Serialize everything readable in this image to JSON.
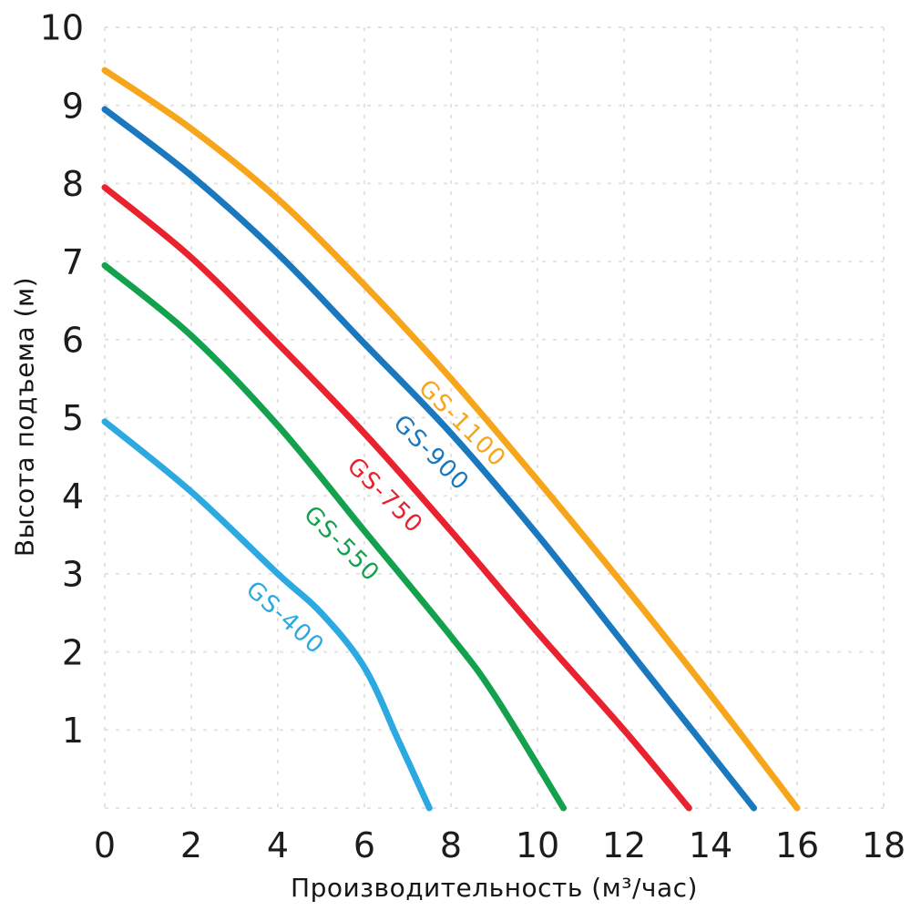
{
  "chart_data": {
    "type": "line",
    "title": "",
    "xlabel": "Производительность (м³/час)",
    "ylabel": "Высота подъема (м)",
    "xlim": [
      0,
      18
    ],
    "ylim": [
      0,
      10
    ],
    "x_ticks": [
      0,
      2,
      4,
      6,
      8,
      10,
      12,
      14,
      16,
      18
    ],
    "y_ticks": [
      1,
      2,
      3,
      4,
      5,
      6,
      7,
      8,
      9,
      10
    ],
    "grid": true,
    "grid_style": "dashed",
    "grid_color": "#E3E3E3",
    "axis_text_color": "#1c1c1c",
    "legend_position": "labels-along-curves",
    "series": [
      {
        "name": "GS-400",
        "color": "#2BA9E0",
        "label_q": 4.6,
        "label_offset": 30,
        "points": [
          [
            0,
            4.95
          ],
          [
            2,
            4.05
          ],
          [
            4,
            3.0
          ],
          [
            5,
            2.5
          ],
          [
            6,
            1.8
          ],
          [
            6.8,
            0.85
          ],
          [
            7.5,
            0
          ]
        ]
      },
      {
        "name": "GS-550",
        "color": "#14A14E",
        "label_q": 5.9,
        "label_offset": 28,
        "points": [
          [
            0,
            6.95
          ],
          [
            2,
            6.05
          ],
          [
            4,
            4.9
          ],
          [
            6,
            3.55
          ],
          [
            8,
            2.2
          ],
          [
            9,
            1.45
          ],
          [
            10.6,
            0
          ]
        ]
      },
      {
        "name": "GS-750",
        "color": "#E8222E",
        "label_q": 6.9,
        "label_offset": 28,
        "points": [
          [
            0,
            7.95
          ],
          [
            2,
            7.05
          ],
          [
            4,
            5.95
          ],
          [
            6,
            4.8
          ],
          [
            8,
            3.55
          ],
          [
            10,
            2.25
          ],
          [
            12,
            1.0
          ],
          [
            13.5,
            0
          ]
        ]
      },
      {
        "name": "GS-900",
        "color": "#1978BE",
        "label_q": 8.0,
        "label_offset": 30,
        "points": [
          [
            0,
            8.95
          ],
          [
            2,
            8.1
          ],
          [
            4,
            7.1
          ],
          [
            6,
            5.95
          ],
          [
            8,
            4.8
          ],
          [
            10,
            3.5
          ],
          [
            12,
            2.1
          ],
          [
            14,
            0.7
          ],
          [
            15,
            0
          ]
        ]
      },
      {
        "name": "GS-1100",
        "color": "#F7A61B",
        "label_q": 8.6,
        "label_offset": 22,
        "points": [
          [
            0,
            9.45
          ],
          [
            2,
            8.7
          ],
          [
            4,
            7.8
          ],
          [
            6,
            6.7
          ],
          [
            8,
            5.5
          ],
          [
            10,
            4.2
          ],
          [
            12,
            2.85
          ],
          [
            14,
            1.45
          ],
          [
            16,
            0
          ]
        ]
      }
    ]
  }
}
